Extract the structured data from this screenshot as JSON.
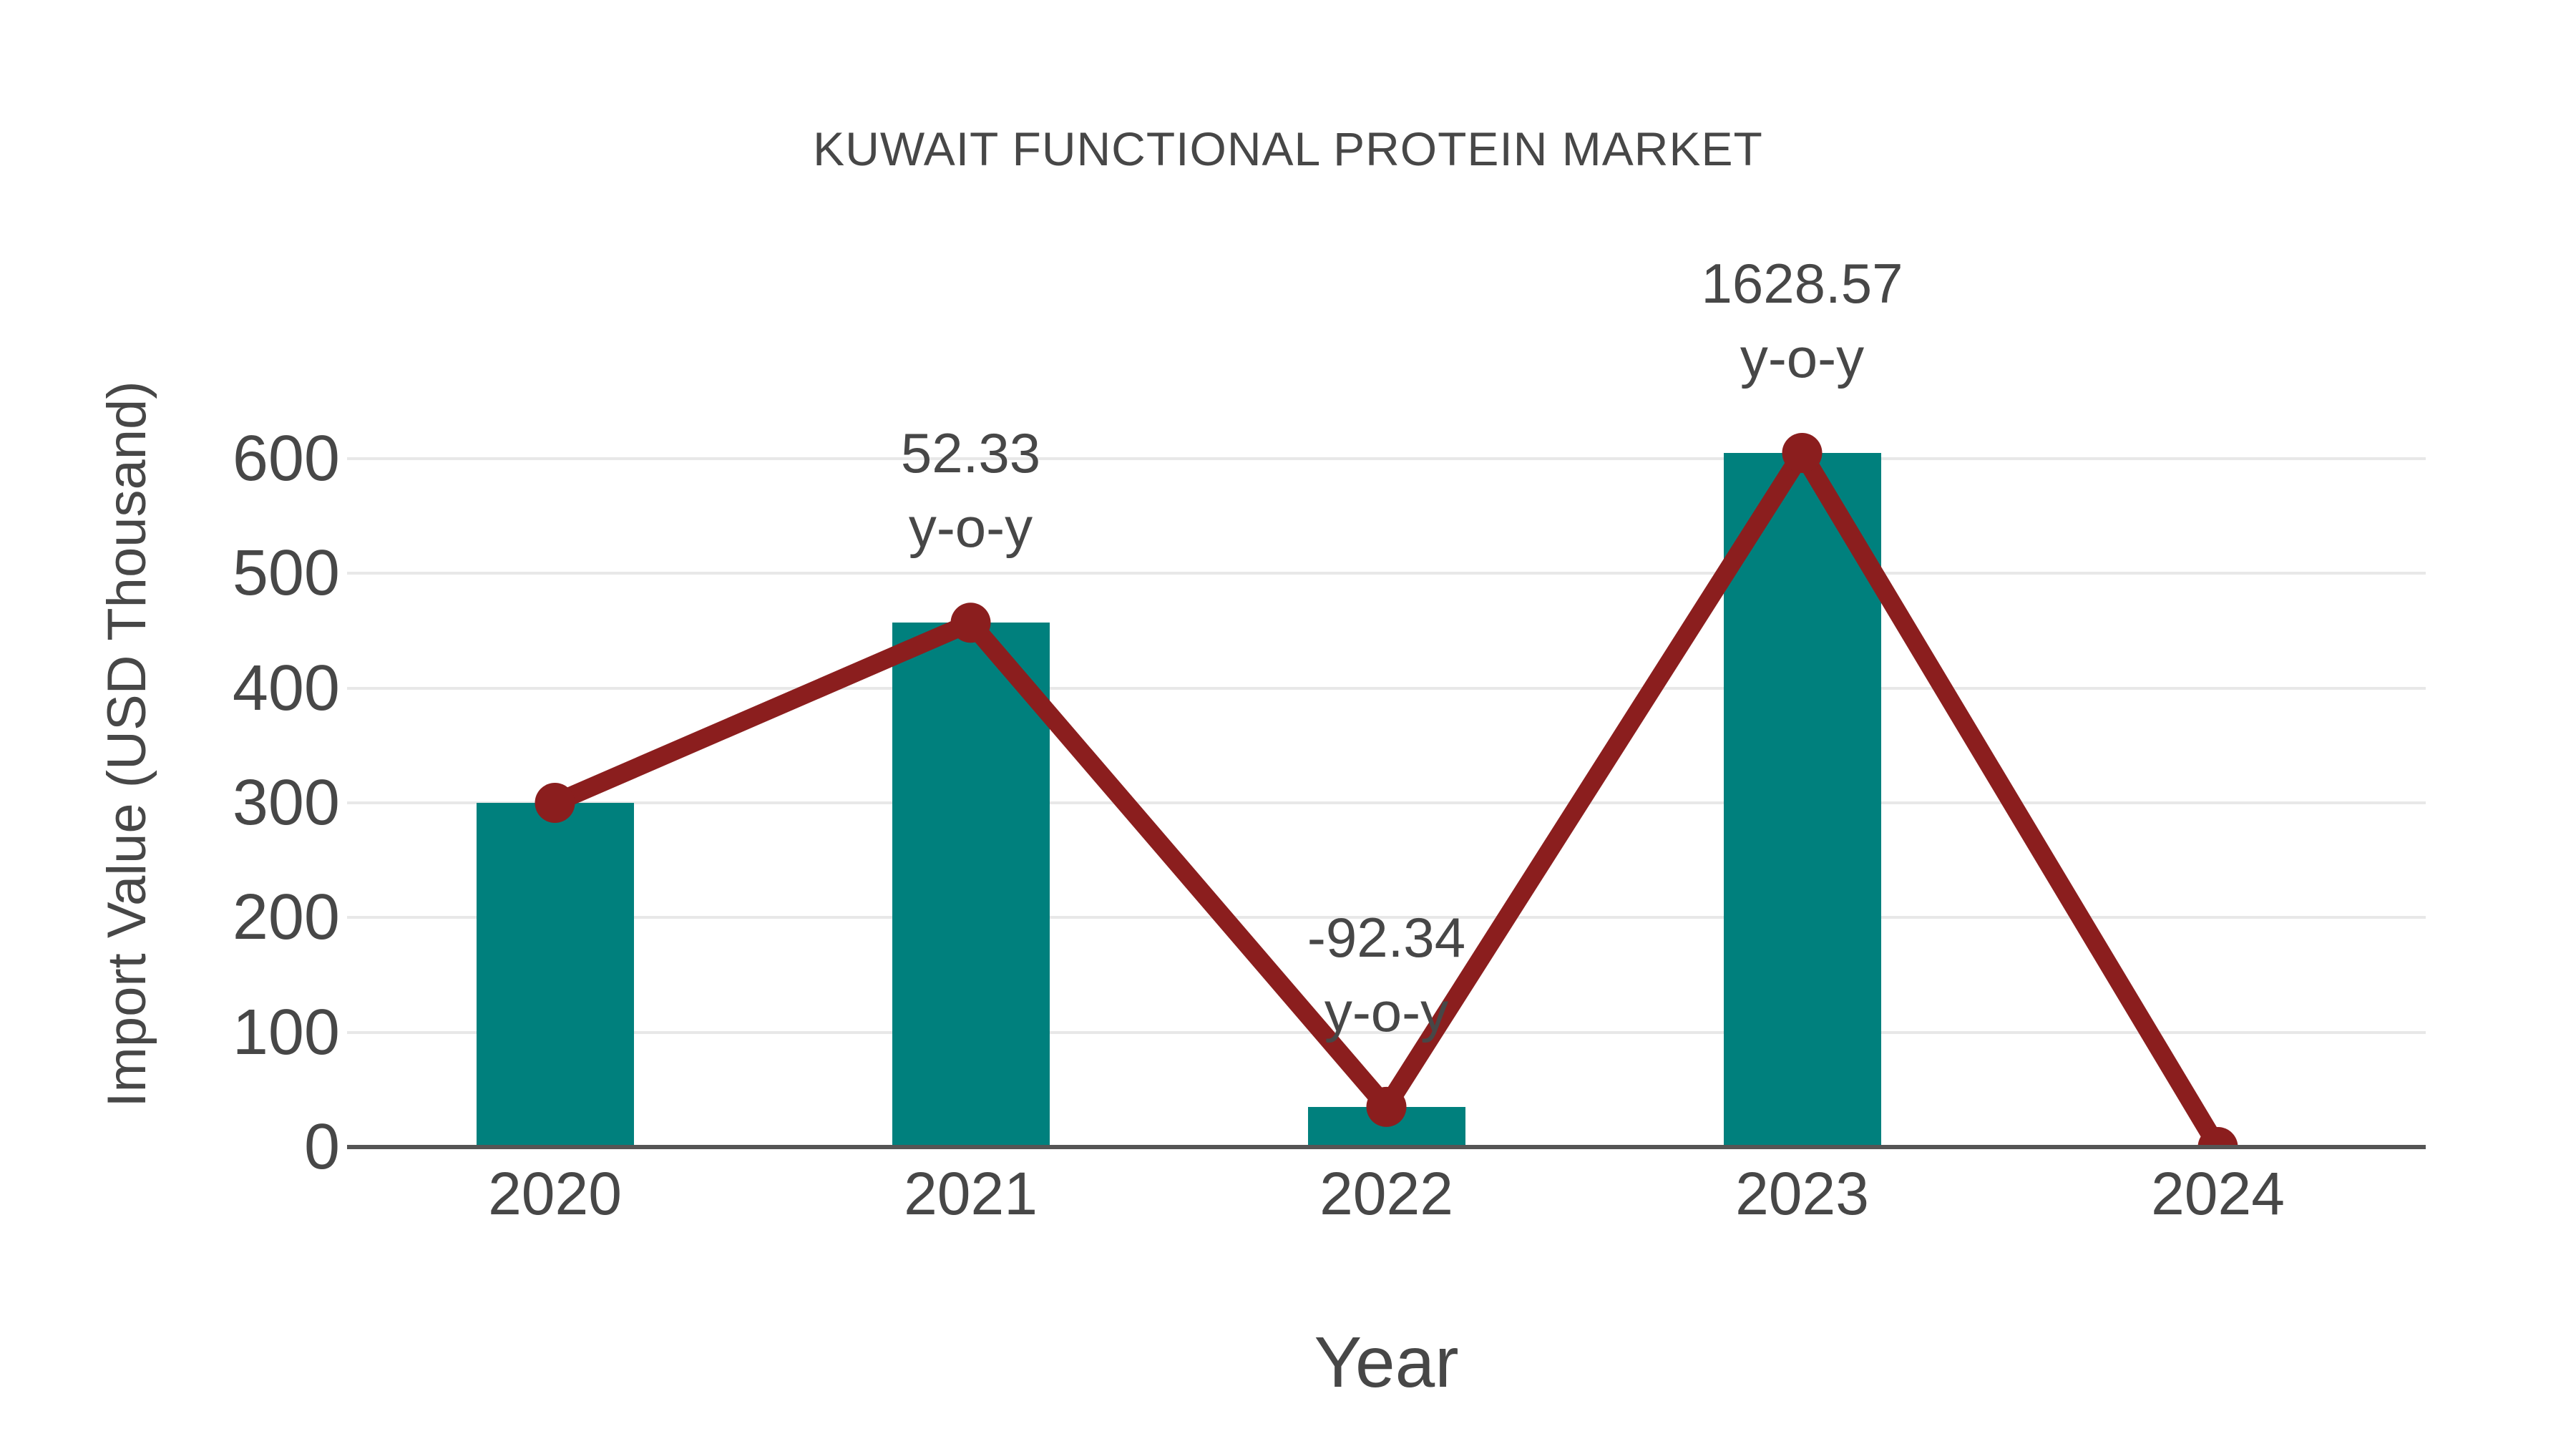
{
  "title": "KUWAIT FUNCTIONAL PROTEIN MARKET",
  "colors": {
    "bar": "#00807D",
    "line": "#8B1E1E",
    "grid": "#E8E8E8",
    "axis": "#555555",
    "text": "#474747"
  },
  "chart_data": {
    "type": "bar",
    "title": "KUWAIT FUNCTIONAL PROTEIN MARKET",
    "categories": [
      "2020",
      "2021",
      "2022",
      "2023",
      "2024"
    ],
    "series": [
      {
        "name": "Import Value",
        "type": "bar",
        "color": "#00807D",
        "values": [
          300,
          457,
          35,
          605,
          0
        ]
      },
      {
        "name": "Import Value trend",
        "type": "line",
        "color": "#8B1E1E",
        "values": [
          300,
          457,
          35,
          605,
          0
        ]
      }
    ],
    "annotations": [
      {
        "category": "2021",
        "value_label": "52.33",
        "suffix_label": "y-o-y"
      },
      {
        "category": "2022",
        "value_label": "-92.34",
        "suffix_label": "y-o-y"
      },
      {
        "category": "2023",
        "value_label": "1628.57",
        "suffix_label": "y-o-y"
      }
    ],
    "xlabel": "Year",
    "ylabel": "Import Value (USD Thousand)",
    "yticks": [
      0,
      100,
      200,
      300,
      400,
      500,
      600
    ],
    "ylim": [
      0,
      650
    ],
    "grid": true,
    "legend_position": "none"
  }
}
